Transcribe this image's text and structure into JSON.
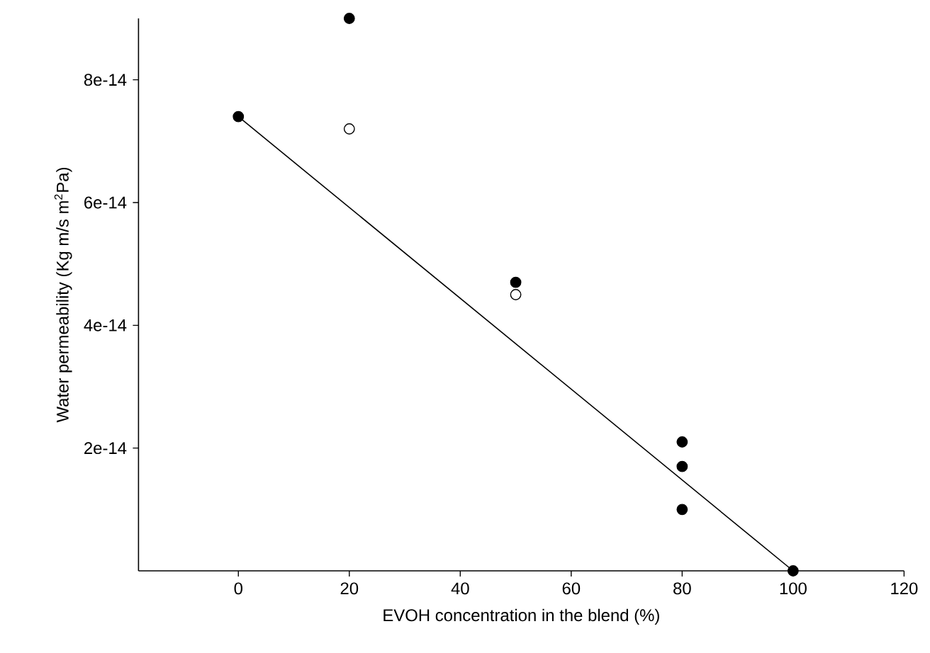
{
  "chart_data": {
    "type": "scatter",
    "xlabel": "EVOH concentration in the blend (%)",
    "ylabel": "Water permeability (Kg m/s m$^{2}$Pa)",
    "xlim": [
      -18,
      120
    ],
    "xticks": [
      0,
      20,
      40,
      60,
      80,
      100,
      120
    ],
    "ylim": [
      0,
      9e-14
    ],
    "yticks": [
      {
        "value": 2e-14,
        "label": "2e-14"
      },
      {
        "value": 4e-14,
        "label": "4e-14"
      },
      {
        "value": 6e-14,
        "label": "6e-14"
      },
      {
        "value": 8e-14,
        "label": "8e-14"
      }
    ],
    "grid": false,
    "series": [
      {
        "type": "line",
        "color": "#000000",
        "x": [
          0,
          100
        ],
        "values": [
          7.4e-14,
          0
        ]
      },
      {
        "color": "#000000",
        "marker": "circle",
        "x": [
          0,
          20,
          50,
          80,
          80,
          80,
          100
        ],
        "values": [
          7.4e-14,
          9e-14,
          4.7e-14,
          2.1e-14,
          1.7e-14,
          1e-14,
          0
        ]
      },
      {
        "color": "#ffffff",
        "marker": "circle",
        "x": [
          20,
          50
        ],
        "values": [
          7.2e-14,
          4.5e-14
        ]
      }
    ]
  }
}
